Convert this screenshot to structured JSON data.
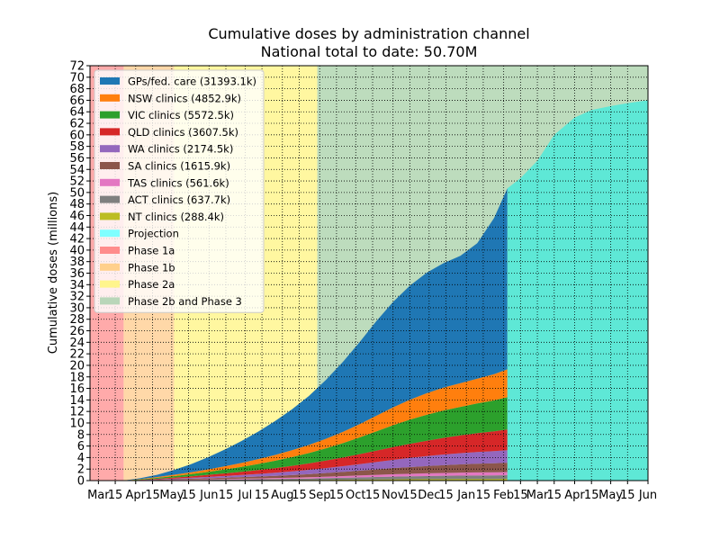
{
  "chart_data": {
    "type": "area",
    "title": "Cumulative doses by administration channel",
    "subtitle": "National total to date: 50.70M",
    "ylabel": "Cumulative doses (millions)",
    "xlabel": "",
    "ylim": [
      0,
      72
    ],
    "y_ticks": [
      0,
      2,
      4,
      6,
      8,
      10,
      12,
      14,
      16,
      18,
      20,
      22,
      24,
      26,
      28,
      30,
      32,
      34,
      36,
      38,
      40,
      42,
      44,
      46,
      48,
      50,
      52,
      54,
      56,
      58,
      60,
      62,
      64,
      66,
      68,
      70,
      72
    ],
    "x_range": [
      "2021-02-22",
      "2022-06-01"
    ],
    "x_ticks": [
      {
        "date": "2021-03-01",
        "label": "Mar"
      },
      {
        "date": "2021-03-15",
        "label": "15"
      },
      {
        "date": "2021-04-01",
        "label": "Apr"
      },
      {
        "date": "2021-04-15",
        "label": "15"
      },
      {
        "date": "2021-05-01",
        "label": "May"
      },
      {
        "date": "2021-05-15",
        "label": "15"
      },
      {
        "date": "2021-06-01",
        "label": "Jun"
      },
      {
        "date": "2021-06-15",
        "label": "15"
      },
      {
        "date": "2021-07-01",
        "label": "Jul"
      },
      {
        "date": "2021-07-15",
        "label": "15"
      },
      {
        "date": "2021-08-01",
        "label": "Aug"
      },
      {
        "date": "2021-08-15",
        "label": "15"
      },
      {
        "date": "2021-09-01",
        "label": "Sep"
      },
      {
        "date": "2021-09-15",
        "label": "15"
      },
      {
        "date": "2021-10-01",
        "label": "Oct"
      },
      {
        "date": "2021-10-15",
        "label": "15"
      },
      {
        "date": "2021-11-01",
        "label": "Nov"
      },
      {
        "date": "2021-11-15",
        "label": "15"
      },
      {
        "date": "2021-12-01",
        "label": "Dec"
      },
      {
        "date": "2021-12-15",
        "label": "15"
      },
      {
        "date": "2022-01-01",
        "label": "Jan"
      },
      {
        "date": "2022-01-15",
        "label": "15"
      },
      {
        "date": "2022-02-01",
        "label": "Feb"
      },
      {
        "date": "2022-02-15",
        "label": "15"
      },
      {
        "date": "2022-03-01",
        "label": "Mar"
      },
      {
        "date": "2022-03-15",
        "label": "15"
      },
      {
        "date": "2022-04-01",
        "label": "Apr"
      },
      {
        "date": "2022-04-15",
        "label": "15"
      },
      {
        "date": "2022-05-01",
        "label": "May"
      },
      {
        "date": "2022-05-15",
        "label": "15"
      },
      {
        "date": "2022-06-01",
        "label": "Jun"
      }
    ],
    "grid": true,
    "legend_position": "upper-left",
    "phases": [
      {
        "name": "Phase 1a",
        "start": "2021-02-22",
        "end": "2021-03-22",
        "color": "#ffaaaa"
      },
      {
        "name": "Phase 1b",
        "start": "2021-03-22",
        "end": "2021-05-03",
        "color": "#ffd8a8"
      },
      {
        "name": "Phase 2a",
        "start": "2021-05-03",
        "end": "2021-08-30",
        "color": "#fff7a0"
      },
      {
        "name": "Phase 2b and Phase 3",
        "start": "2021-08-30",
        "end": "2022-06-01",
        "color": "#bddcbd"
      }
    ],
    "dates": [
      "2021-03-22",
      "2021-04-05",
      "2021-04-19",
      "2021-05-03",
      "2021-05-17",
      "2021-05-31",
      "2021-06-14",
      "2021-06-28",
      "2021-07-12",
      "2021-07-26",
      "2021-08-09",
      "2021-08-23",
      "2021-09-06",
      "2021-09-20",
      "2021-10-04",
      "2021-10-18",
      "2021-11-01",
      "2021-11-15",
      "2021-11-29",
      "2021-12-13",
      "2021-12-27",
      "2022-01-10",
      "2022-01-24",
      "2022-02-04"
    ],
    "series": [
      {
        "name": "NT clinics (288.4k)",
        "color": "#bcbd22",
        "values": [
          0,
          0.01,
          0.02,
          0.03,
          0.04,
          0.05,
          0.06,
          0.07,
          0.08,
          0.09,
          0.1,
          0.12,
          0.14,
          0.16,
          0.18,
          0.2,
          0.22,
          0.24,
          0.25,
          0.26,
          0.27,
          0.275,
          0.28,
          0.29
        ]
      },
      {
        "name": "ACT clinics (637.7k)",
        "color": "#7f7f7f",
        "values": [
          0,
          0.01,
          0.03,
          0.05,
          0.07,
          0.09,
          0.11,
          0.13,
          0.15,
          0.18,
          0.21,
          0.24,
          0.28,
          0.32,
          0.37,
          0.42,
          0.47,
          0.51,
          0.54,
          0.57,
          0.59,
          0.61,
          0.62,
          0.64
        ]
      },
      {
        "name": "TAS clinics (561.6k)",
        "color": "#e377c2",
        "values": [
          0,
          0.01,
          0.03,
          0.05,
          0.07,
          0.09,
          0.11,
          0.13,
          0.15,
          0.17,
          0.2,
          0.23,
          0.26,
          0.3,
          0.34,
          0.38,
          0.42,
          0.45,
          0.48,
          0.5,
          0.52,
          0.54,
          0.55,
          0.56
        ]
      },
      {
        "name": "SA clinics (1615.9k)",
        "color": "#8c564b",
        "values": [
          0,
          0.03,
          0.06,
          0.1,
          0.14,
          0.18,
          0.22,
          0.27,
          0.32,
          0.38,
          0.45,
          0.53,
          0.62,
          0.72,
          0.83,
          0.94,
          1.05,
          1.15,
          1.25,
          1.35,
          1.43,
          1.5,
          1.56,
          1.62
        ]
      },
      {
        "name": "WA clinics (2174.5k)",
        "color": "#9467bd",
        "values": [
          0,
          0.03,
          0.07,
          0.12,
          0.17,
          0.23,
          0.3,
          0.37,
          0.45,
          0.54,
          0.64,
          0.75,
          0.87,
          1.0,
          1.14,
          1.29,
          1.44,
          1.59,
          1.73,
          1.85,
          1.95,
          2.04,
          2.11,
          2.17
        ]
      },
      {
        "name": "QLD clinics (3607.5k)",
        "color": "#d62728",
        "values": [
          0,
          0.05,
          0.11,
          0.18,
          0.26,
          0.35,
          0.45,
          0.56,
          0.68,
          0.81,
          0.96,
          1.12,
          1.3,
          1.5,
          1.72,
          1.96,
          2.21,
          2.45,
          2.67,
          2.88,
          3.08,
          3.27,
          3.44,
          3.61
        ]
      },
      {
        "name": "VIC clinics (5572.5k)",
        "color": "#2ca02c",
        "values": [
          0,
          0.07,
          0.16,
          0.26,
          0.38,
          0.52,
          0.68,
          0.86,
          1.06,
          1.28,
          1.52,
          1.8,
          2.12,
          2.48,
          2.9,
          3.35,
          3.8,
          4.2,
          4.5,
          4.75,
          4.95,
          5.15,
          5.35,
          5.57
        ]
      },
      {
        "name": "NSW clinics (4852.9k)",
        "color": "#ff7f0e",
        "values": [
          0,
          0.06,
          0.14,
          0.22,
          0.32,
          0.43,
          0.55,
          0.68,
          0.83,
          1.0,
          1.19,
          1.4,
          1.65,
          1.95,
          2.3,
          2.7,
          3.1,
          3.45,
          3.75,
          3.98,
          4.12,
          4.3,
          4.55,
          4.85
        ]
      },
      {
        "name": "GPs/fed. care (31393.1k)",
        "color": "#1f77b4",
        "values": [
          0,
          0.15,
          0.4,
          0.85,
          1.4,
          2.1,
          2.9,
          3.8,
          4.8,
          5.9,
          7.1,
          8.5,
          10.2,
          12.1,
          14.2,
          16.4,
          18.3,
          19.8,
          20.9,
          21.6,
          22.1,
          23.5,
          27.1,
          31.39
        ]
      }
    ],
    "projection": {
      "name": "Projection",
      "color": "#7fffff",
      "dates": [
        "2022-02-04",
        "2022-02-15",
        "2022-03-01",
        "2022-03-15",
        "2022-04-01",
        "2022-04-15",
        "2022-05-01",
        "2022-05-15",
        "2022-06-01"
      ],
      "values": [
        50.7,
        52.5,
        55.5,
        60.0,
        63.0,
        64.3,
        65.0,
        65.5,
        66.0
      ]
    },
    "legend": [
      {
        "label": "GPs/fed. care (31393.1k)",
        "color": "#1f77b4"
      },
      {
        "label": "NSW clinics (4852.9k)",
        "color": "#ff7f0e"
      },
      {
        "label": "VIC clinics (5572.5k)",
        "color": "#2ca02c"
      },
      {
        "label": "QLD clinics (3607.5k)",
        "color": "#d62728"
      },
      {
        "label": "WA clinics (2174.5k)",
        "color": "#9467bd"
      },
      {
        "label": "SA clinics (1615.9k)",
        "color": "#8c564b"
      },
      {
        "label": "TAS clinics (561.6k)",
        "color": "#e377c2"
      },
      {
        "label": "ACT clinics (637.7k)",
        "color": "#7f7f7f"
      },
      {
        "label": "NT clinics (288.4k)",
        "color": "#bcbd22"
      },
      {
        "label": "Projection",
        "color": "#7fffff"
      },
      {
        "label": "Phase 1a",
        "color": "#ff8c8c"
      },
      {
        "label": "Phase 1b",
        "color": "#ffd08c"
      },
      {
        "label": "Phase 2a",
        "color": "#fff58c"
      },
      {
        "label": "Phase 2b and Phase 3",
        "color": "#b9d6b9"
      }
    ]
  }
}
